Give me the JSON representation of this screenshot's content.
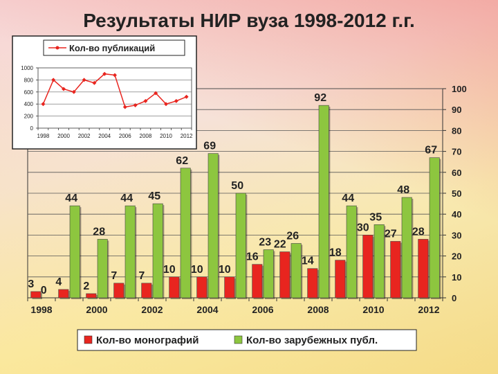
{
  "page": {
    "title": "Результаты НИР вуза  1998-2012 г.г."
  },
  "colors": {
    "monographs": "#e8251f",
    "foreign": "#8dc63f",
    "line": "#e8251f",
    "frame": "#1a1a1a"
  },
  "chart_data": [
    {
      "type": "bar",
      "categories": [
        "1998",
        "1999",
        "2000",
        "2001",
        "2002",
        "2003",
        "2004",
        "2005",
        "2006",
        "2007",
        "2008",
        "2009",
        "2010",
        "2011",
        "2012"
      ],
      "x_tick_labels": [
        "1998",
        "2000",
        "2002",
        "2004",
        "2006",
        "2008",
        "2010",
        "2012"
      ],
      "y_ticks": [
        "0",
        "10",
        "20",
        "30",
        "40",
        "50",
        "60",
        "70",
        "80",
        "90",
        "100"
      ],
      "ylim": [
        0,
        100
      ],
      "legend_position": "bottom",
      "grid": true,
      "series": [
        {
          "name": "Кол-во монографий",
          "color": "#e8251f",
          "values": [
            3,
            4,
            2,
            7,
            7,
            10,
            10,
            10,
            16,
            22,
            14,
            18,
            30,
            27,
            28
          ],
          "labels": [
            "3",
            "4",
            "2",
            "7",
            "7",
            "10",
            "10",
            "10",
            "16",
            "22",
            "14",
            "18",
            "30",
            "27",
            "28"
          ]
        },
        {
          "name": "Кол-во зарубежных публ.",
          "color": "#8dc63f",
          "values": [
            0,
            44,
            28,
            44,
            45,
            62,
            69,
            50,
            23,
            26,
            92,
            44,
            35,
            48,
            67
          ],
          "labels": [
            "0",
            "44",
            "28",
            "44",
            "45",
            "62",
            "69",
            "50",
            "23",
            "26",
            "92",
            "44",
            "35",
            "48",
            "67"
          ]
        }
      ]
    },
    {
      "type": "line",
      "categories": [
        "1998",
        "1999",
        "2000",
        "2001",
        "2002",
        "2003",
        "2004",
        "2005",
        "2006",
        "2007",
        "2008",
        "2009",
        "2010",
        "2011",
        "2012"
      ],
      "x_tick_labels": [
        "1998",
        "2000",
        "2002",
        "2004",
        "2006",
        "2008",
        "2010",
        "2012"
      ],
      "y_ticks": [
        "0",
        "200",
        "400",
        "600",
        "800",
        "1000"
      ],
      "ylim": [
        0,
        1000
      ],
      "legend_position": "top",
      "grid": true,
      "series": [
        {
          "name": "Кол-во публикаций",
          "color": "#e8251f",
          "values": [
            400,
            800,
            650,
            600,
            800,
            750,
            900,
            880,
            350,
            380,
            450,
            580,
            400,
            450,
            520
          ]
        }
      ]
    }
  ]
}
